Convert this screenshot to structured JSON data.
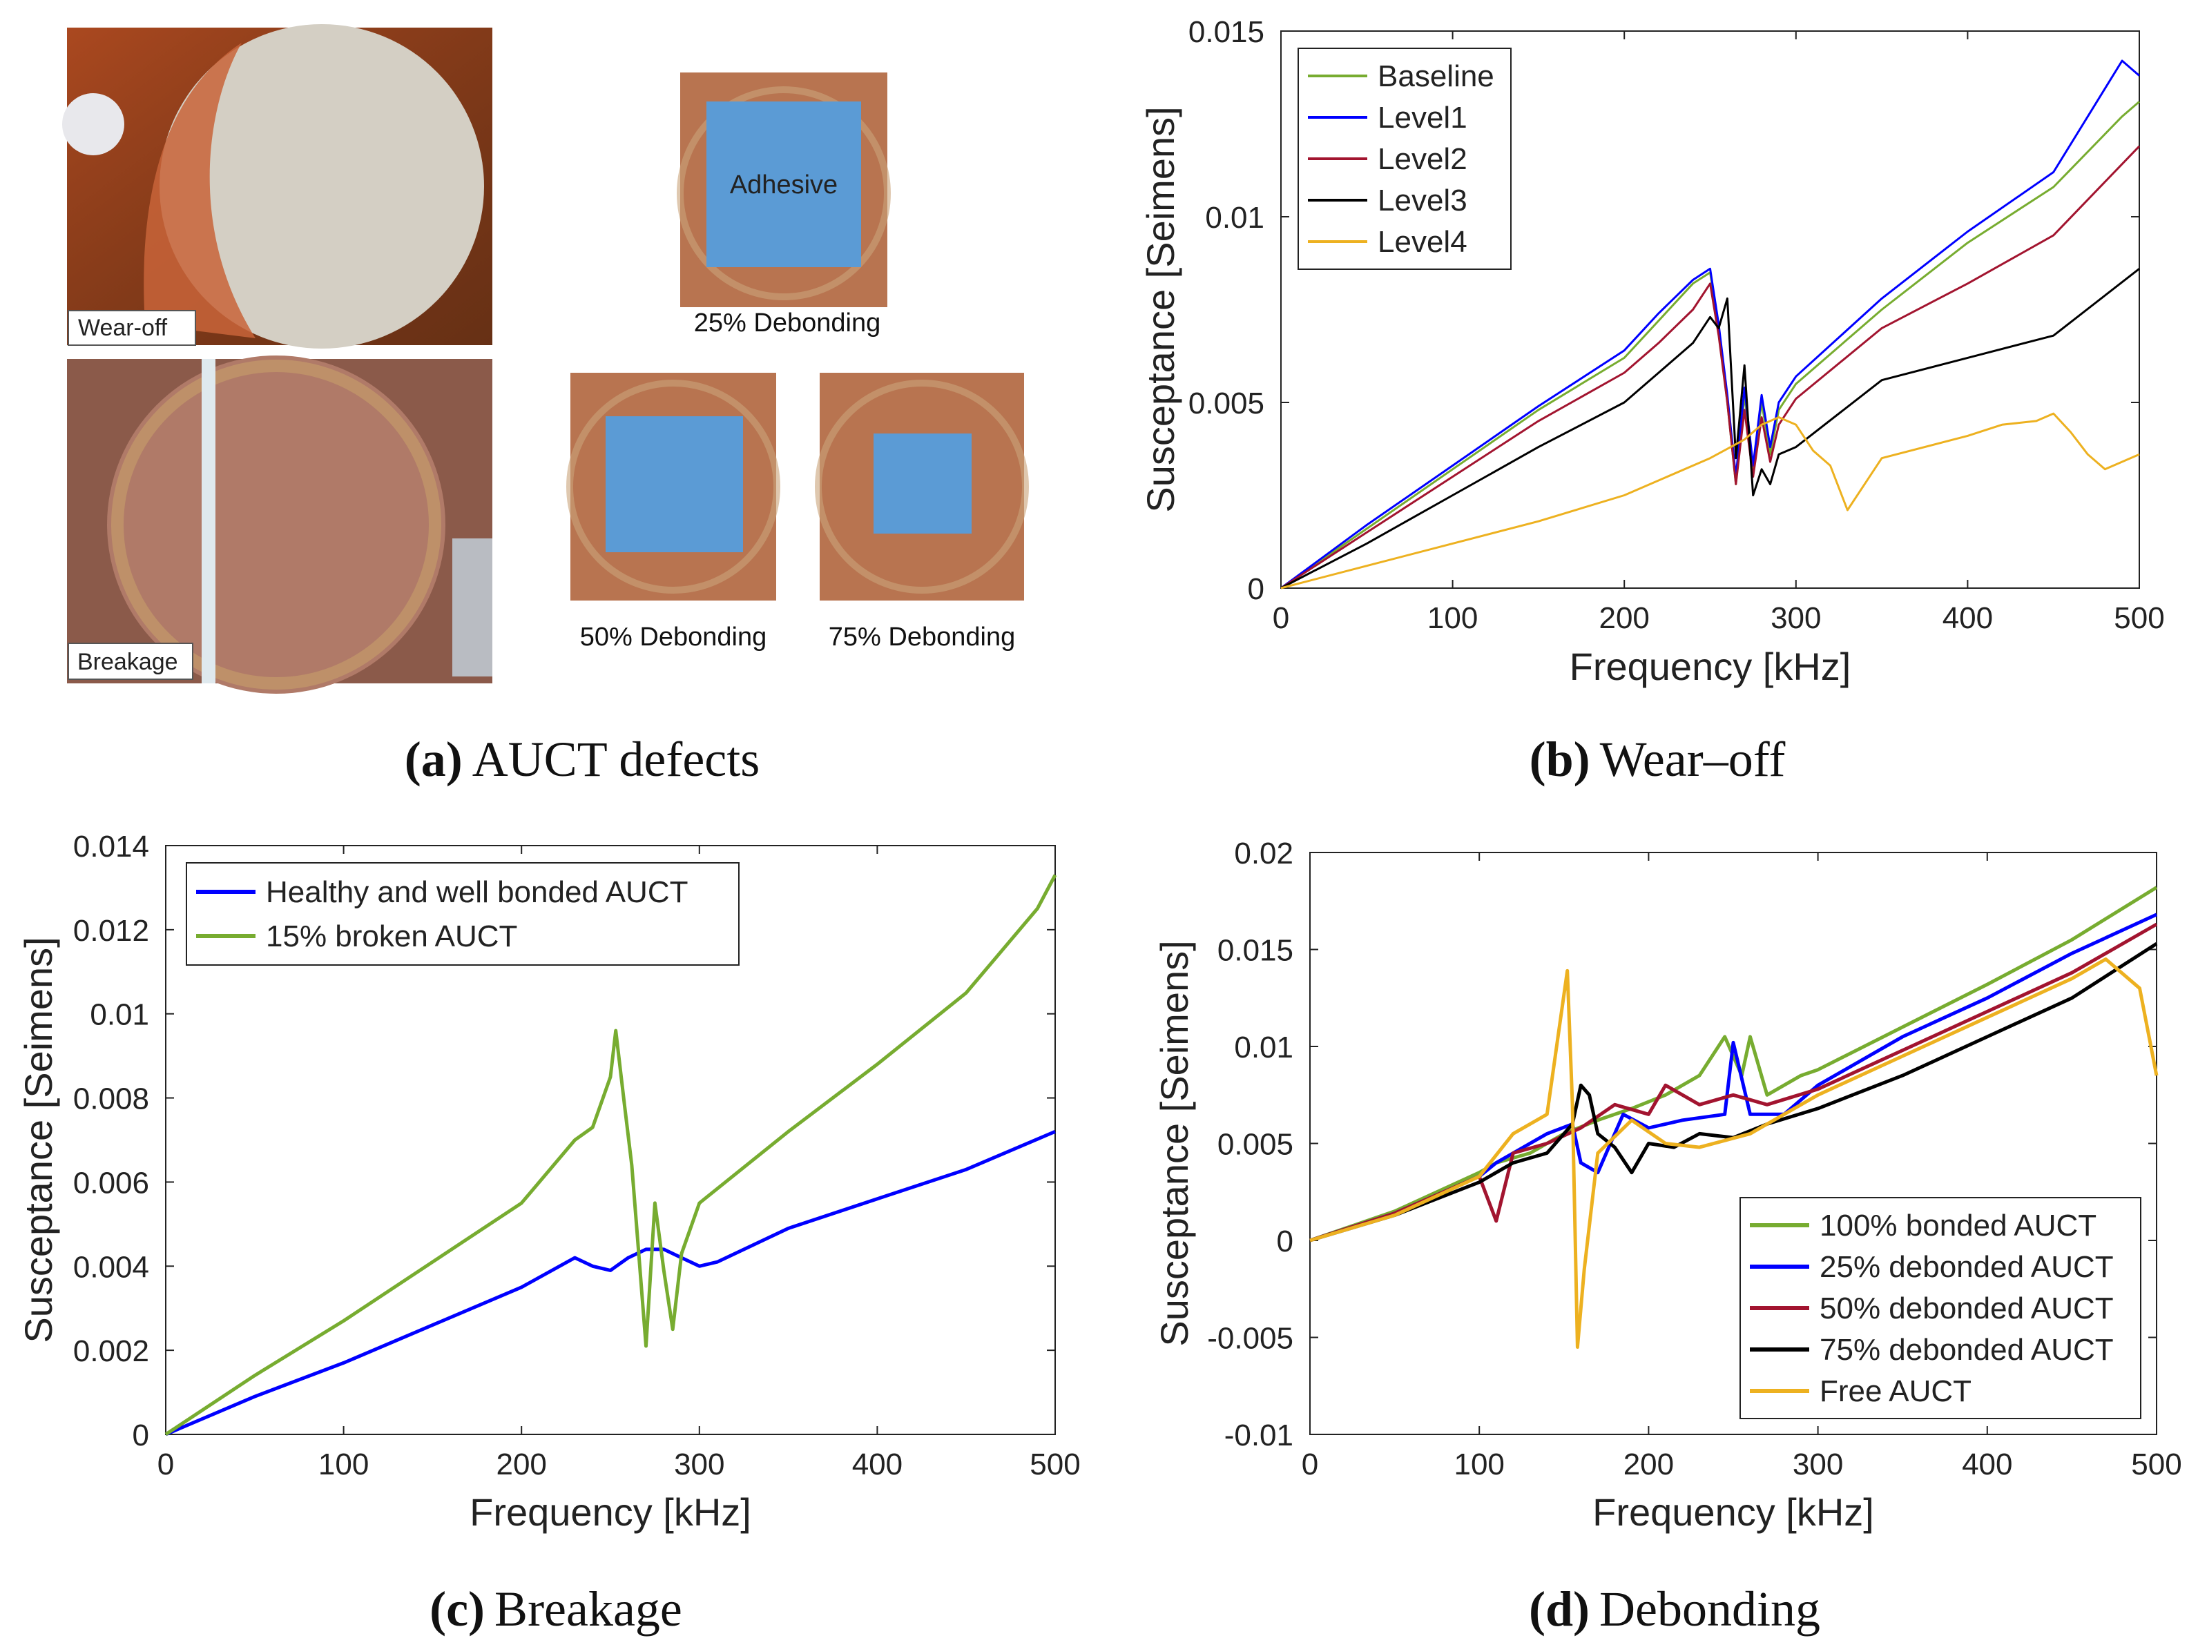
{
  "panels": {
    "a": {
      "caption_letter": "(a)",
      "caption_text": "AUCT defects",
      "photo_labels": {
        "wear_off": "Wear-off",
        "breakage": "Breakage",
        "adhesive": "Adhesive",
        "d25": "25% Debonding",
        "d50": "50% Debonding",
        "d75": "75% Debonding"
      }
    },
    "b": {
      "caption_letter": "(b)",
      "caption_text": "Wear–off"
    },
    "c": {
      "caption_letter": "(c)",
      "caption_text": "Breakage"
    },
    "d": {
      "caption_letter": "(d)",
      "caption_text": "Debonding"
    }
  },
  "colors": {
    "green": "#77ac30",
    "blue": "#0000ff",
    "red": "#a2142f",
    "black": "#000000",
    "yellow": "#edb120",
    "copper": "#c0683a",
    "adhesive": "#5b9bd5"
  },
  "chart_data": [
    {
      "id": "b",
      "type": "line",
      "title": "Wear–off",
      "xlabel": "Frequency [kHz]",
      "ylabel": "Susceptance [Seimens]",
      "xlim": [
        0,
        500
      ],
      "ylim": [
        0,
        0.015
      ],
      "xticks": [
        0,
        100,
        200,
        300,
        400,
        500
      ],
      "yticks": [
        0,
        0.005,
        0.01,
        0.015
      ],
      "ytick_labels": [
        "0",
        "0.005",
        "0.01",
        "0.015"
      ],
      "legend_position": "top-left",
      "series": [
        {
          "name": "Baseline",
          "color": "green",
          "x": [
            0,
            50,
            100,
            150,
            200,
            220,
            240,
            250,
            255,
            260,
            265,
            270,
            275,
            280,
            285,
            290,
            300,
            350,
            400,
            450,
            490,
            500
          ],
          "y": [
            0,
            0.0016,
            0.0032,
            0.0048,
            0.0062,
            0.0072,
            0.0082,
            0.0085,
            0.007,
            0.005,
            0.0028,
            0.0052,
            0.0032,
            0.005,
            0.0036,
            0.0048,
            0.0055,
            0.0075,
            0.0093,
            0.0108,
            0.0127,
            0.0131
          ]
        },
        {
          "name": "Level1",
          "color": "blue",
          "x": [
            0,
            50,
            100,
            150,
            200,
            220,
            240,
            250,
            255,
            260,
            265,
            270,
            275,
            280,
            285,
            290,
            300,
            350,
            400,
            450,
            490,
            500
          ],
          "y": [
            0,
            0.0017,
            0.0033,
            0.0049,
            0.0064,
            0.0074,
            0.0083,
            0.0086,
            0.0071,
            0.0052,
            0.003,
            0.0054,
            0.0033,
            0.0052,
            0.0038,
            0.005,
            0.0057,
            0.0078,
            0.0096,
            0.0112,
            0.0142,
            0.0138
          ]
        },
        {
          "name": "Level2",
          "color": "red",
          "x": [
            0,
            50,
            100,
            150,
            200,
            220,
            240,
            250,
            255,
            260,
            265,
            270,
            275,
            280,
            285,
            290,
            300,
            350,
            400,
            450,
            500
          ],
          "y": [
            0,
            0.0015,
            0.003,
            0.0045,
            0.0058,
            0.0066,
            0.0075,
            0.0082,
            0.0068,
            0.005,
            0.0028,
            0.0048,
            0.003,
            0.0046,
            0.0034,
            0.0044,
            0.0051,
            0.007,
            0.0082,
            0.0095,
            0.0119
          ]
        },
        {
          "name": "Level3",
          "color": "black",
          "x": [
            0,
            50,
            100,
            150,
            200,
            220,
            240,
            250,
            255,
            260,
            265,
            270,
            275,
            280,
            285,
            290,
            300,
            350,
            400,
            450,
            500
          ],
          "y": [
            0,
            0.0012,
            0.0025,
            0.0038,
            0.005,
            0.0058,
            0.0066,
            0.0073,
            0.007,
            0.0078,
            0.0035,
            0.006,
            0.0025,
            0.0032,
            0.0028,
            0.0036,
            0.0038,
            0.0056,
            0.0062,
            0.0068,
            0.0086
          ]
        },
        {
          "name": "Level4",
          "color": "yellow",
          "x": [
            0,
            50,
            100,
            150,
            200,
            250,
            270,
            280,
            290,
            300,
            310,
            320,
            330,
            340,
            350,
            400,
            420,
            440,
            450,
            460,
            470,
            480,
            500
          ],
          "y": [
            0,
            0.0006,
            0.0012,
            0.0018,
            0.0025,
            0.0035,
            0.004,
            0.0044,
            0.0046,
            0.0044,
            0.0037,
            0.0033,
            0.0021,
            0.0028,
            0.0035,
            0.0041,
            0.0044,
            0.0045,
            0.0047,
            0.0042,
            0.0036,
            0.0032,
            0.0036
          ]
        }
      ]
    },
    {
      "id": "c",
      "type": "line",
      "title": "Breakage",
      "xlabel": "Frequency [kHz]",
      "ylabel": "Susceptance [Seimens]",
      "xlim": [
        0,
        500
      ],
      "ylim": [
        0,
        0.014
      ],
      "xticks": [
        0,
        100,
        200,
        300,
        400,
        500
      ],
      "yticks": [
        0,
        0.002,
        0.004,
        0.006,
        0.008,
        0.01,
        0.012,
        0.014
      ],
      "ytick_labels": [
        "0",
        "0.002",
        "0.004",
        "0.006",
        "0.008",
        "0.01",
        "0.012",
        "0.014"
      ],
      "legend_position": "top-left",
      "series": [
        {
          "name": "Healthy and well bonded AUCT",
          "color": "blue",
          "x": [
            0,
            50,
            100,
            150,
            200,
            230,
            240,
            250,
            260,
            270,
            280,
            290,
            300,
            310,
            350,
            400,
            450,
            500
          ],
          "y": [
            0,
            0.0009,
            0.0017,
            0.0026,
            0.0035,
            0.0042,
            0.004,
            0.0039,
            0.0042,
            0.0044,
            0.0044,
            0.0042,
            0.004,
            0.0041,
            0.0049,
            0.0056,
            0.0063,
            0.0072
          ]
        },
        {
          "name": "15% broken AUCT",
          "color": "green",
          "x": [
            0,
            50,
            100,
            150,
            200,
            230,
            240,
            250,
            253,
            258,
            262,
            265,
            270,
            275,
            280,
            285,
            290,
            300,
            350,
            400,
            450,
            490,
            500
          ],
          "y": [
            0,
            0.0014,
            0.0027,
            0.0041,
            0.0055,
            0.007,
            0.0073,
            0.0085,
            0.0096,
            0.0078,
            0.0064,
            0.0048,
            0.0021,
            0.0055,
            0.0039,
            0.0025,
            0.0043,
            0.0055,
            0.0072,
            0.0088,
            0.0105,
            0.0125,
            0.0133
          ]
        }
      ]
    },
    {
      "id": "d",
      "type": "line",
      "title": "Debonding",
      "xlabel": "Frequency [kHz]",
      "ylabel": "Susceptance [Seimens]",
      "xlim": [
        0,
        500
      ],
      "ylim": [
        -0.01,
        0.02
      ],
      "xticks": [
        0,
        100,
        200,
        300,
        400,
        500
      ],
      "yticks": [
        -0.01,
        -0.005,
        0,
        0.005,
        0.01,
        0.015,
        0.02
      ],
      "ytick_labels": [
        "-0.01",
        "-0.005",
        "0",
        "0.005",
        "0.01",
        "0.015",
        "0.02"
      ],
      "legend_position": "bottom-right",
      "series": [
        {
          "name": "100% bonded AUCT",
          "color": "green",
          "x": [
            0,
            50,
            100,
            110,
            130,
            150,
            170,
            190,
            210,
            230,
            245,
            255,
            260,
            270,
            290,
            300,
            350,
            400,
            450,
            500
          ],
          "y": [
            0,
            0.0015,
            0.0035,
            0.004,
            0.0045,
            0.0055,
            0.0062,
            0.0068,
            0.0075,
            0.0085,
            0.0105,
            0.0085,
            0.0105,
            0.0075,
            0.0085,
            0.0088,
            0.011,
            0.0132,
            0.0155,
            0.0182
          ]
        },
        {
          "name": "25% debonded AUCT",
          "color": "blue",
          "x": [
            0,
            50,
            100,
            110,
            120,
            140,
            155,
            160,
            170,
            185,
            200,
            220,
            245,
            250,
            260,
            280,
            300,
            350,
            400,
            450,
            500
          ],
          "y": [
            0,
            0.0014,
            0.0033,
            0.004,
            0.0045,
            0.0055,
            0.006,
            0.004,
            0.0035,
            0.0065,
            0.0058,
            0.0062,
            0.0065,
            0.0102,
            0.0065,
            0.0065,
            0.008,
            0.0105,
            0.0125,
            0.0148,
            0.0168
          ]
        },
        {
          "name": "50% debonded AUCT",
          "color": "red",
          "x": [
            0,
            50,
            100,
            110,
            120,
            140,
            160,
            180,
            200,
            210,
            230,
            250,
            270,
            300,
            350,
            400,
            450,
            500
          ],
          "y": [
            0,
            0.0014,
            0.0033,
            0.001,
            0.0045,
            0.005,
            0.0058,
            0.007,
            0.0065,
            0.008,
            0.007,
            0.0075,
            0.007,
            0.0078,
            0.0098,
            0.0118,
            0.0138,
            0.0163
          ]
        },
        {
          "name": "75% debonded AUCT",
          "color": "black",
          "x": [
            0,
            50,
            100,
            120,
            140,
            155,
            160,
            165,
            170,
            180,
            190,
            200,
            215,
            230,
            250,
            270,
            300,
            350,
            400,
            450,
            500
          ],
          "y": [
            0,
            0.0013,
            0.003,
            0.004,
            0.0045,
            0.006,
            0.008,
            0.0075,
            0.0055,
            0.0048,
            0.0035,
            0.005,
            0.0048,
            0.0055,
            0.0053,
            0.006,
            0.0068,
            0.0085,
            0.0105,
            0.0125,
            0.0153
          ]
        },
        {
          "name": "Free AUCT",
          "color": "yellow",
          "x": [
            0,
            50,
            100,
            120,
            140,
            152,
            155,
            158,
            162,
            170,
            190,
            210,
            230,
            260,
            300,
            350,
            400,
            450,
            470,
            490,
            500
          ],
          "y": [
            0,
            0.0013,
            0.0033,
            0.0055,
            0.0065,
            0.0139,
            0.007,
            -0.0055,
            -0.0015,
            0.0045,
            0.0062,
            0.005,
            0.0048,
            0.0055,
            0.0075,
            0.0095,
            0.0115,
            0.0135,
            0.0145,
            0.013,
            0.0085
          ]
        }
      ]
    }
  ]
}
